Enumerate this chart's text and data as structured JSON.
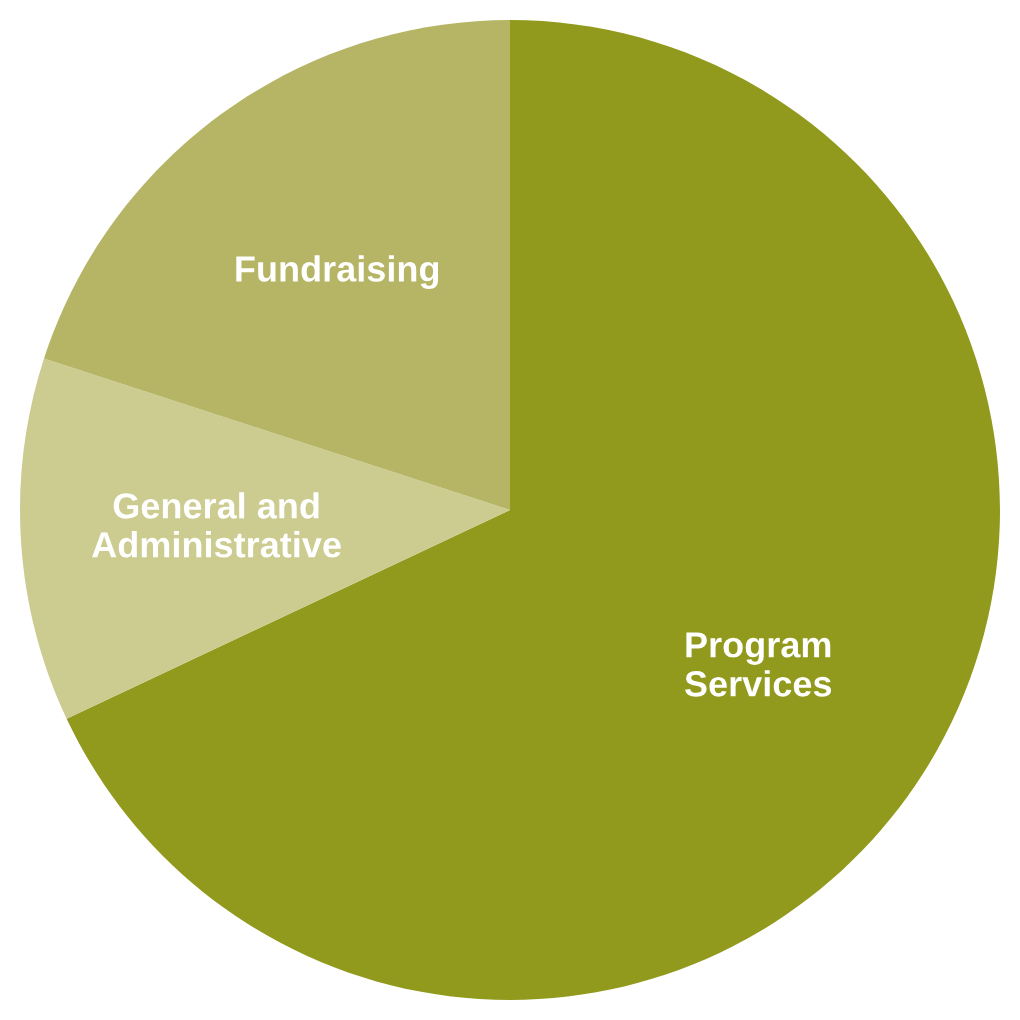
{
  "chart_data": {
    "type": "pie",
    "categories": [
      "Program\nServices",
      "General and\nAdministrative",
      "Fundraising"
    ],
    "values": [
      68,
      12,
      20
    ],
    "colors": [
      "#919a1c",
      "#cccc90",
      "#b5b565"
    ]
  }
}
